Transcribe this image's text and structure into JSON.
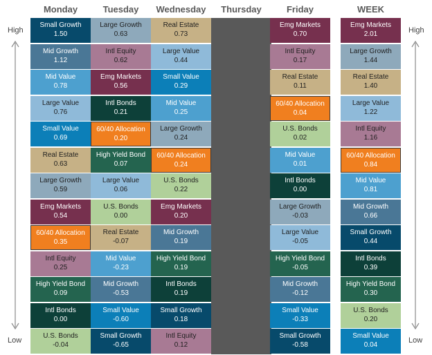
{
  "colors": {
    "Small Growth": "#074a6b",
    "Large Growth": "#8ea9bb",
    "Emg Markets": "#76304e",
    "Intl Equity": "#a87a94",
    "Real Estate": "#c6b186",
    "Mid Growth": "#4a7796",
    "Large Value": "#8fbad9",
    "60/40 Allocation": "#f07f1f",
    "Mid Value": "#4da0cf",
    "Small Value": "#0c7fb8",
    "Intl Bonds": "#0d4039",
    "High Yield Bond": "#24644f",
    "U.S. Bonds": "#b0d09a",
    "thursday": "#595959"
  },
  "labels": {
    "high": "High",
    "low": "Low"
  },
  "chart_data": {
    "type": "table",
    "columns": [
      {
        "day": "Monday",
        "cells": [
          {
            "name": "Small Growth",
            "value": "1.50"
          },
          {
            "name": "Mid Growth",
            "value": "1.12"
          },
          {
            "name": "Mid Value",
            "value": "0.78"
          },
          {
            "name": "Large Value",
            "value": "0.76"
          },
          {
            "name": "Small Value",
            "value": "0.69"
          },
          {
            "name": "Real Estate",
            "value": "0.63"
          },
          {
            "name": "Large Growth",
            "value": "0.59"
          },
          {
            "name": "Emg Markets",
            "value": "0.54"
          },
          {
            "name": "60/40 Allocation",
            "value": "0.35"
          },
          {
            "name": "Intl Equity",
            "value": "0.25"
          },
          {
            "name": "High Yield Bond",
            "value": "0.09"
          },
          {
            "name": "Intl Bonds",
            "value": "0.00"
          },
          {
            "name": "U.S. Bonds",
            "value": "-0.04"
          }
        ]
      },
      {
        "day": "Tuesday",
        "cells": [
          {
            "name": "Large Growth",
            "value": "0.63"
          },
          {
            "name": "Intl Equity",
            "value": "0.62"
          },
          {
            "name": "Emg Markets",
            "value": "0.56"
          },
          {
            "name": "Intl Bonds",
            "value": "0.21"
          },
          {
            "name": "60/40 Allocation",
            "value": "0.20"
          },
          {
            "name": "High Yield Bond",
            "value": "0.07"
          },
          {
            "name": "Large Value",
            "value": "0.06"
          },
          {
            "name": "U.S. Bonds",
            "value": "0.00"
          },
          {
            "name": "Real Estate",
            "value": "-0.07"
          },
          {
            "name": "Mid Value",
            "value": "-0.23"
          },
          {
            "name": "Mid Growth",
            "value": "-0.53"
          },
          {
            "name": "Small Value",
            "value": "-0.60"
          },
          {
            "name": "Small Growth",
            "value": "-0.65"
          }
        ]
      },
      {
        "day": "Wednesday",
        "cells": [
          {
            "name": "Real Estate",
            "value": "0.73"
          },
          {
            "name": "Large Value",
            "value": "0.44"
          },
          {
            "name": "Small Value",
            "value": "0.29"
          },
          {
            "name": "Mid Value",
            "value": "0.25"
          },
          {
            "name": "Large Growth",
            "value": "0.24"
          },
          {
            "name": "60/40 Allocation",
            "value": "0.24"
          },
          {
            "name": "U.S. Bonds",
            "value": "0.22"
          },
          {
            "name": "Emg Markets",
            "value": "0.20"
          },
          {
            "name": "Mid Growth",
            "value": "0.19"
          },
          {
            "name": "High Yield Bond",
            "value": "0.19"
          },
          {
            "name": "Intl Bonds",
            "value": "0.19"
          },
          {
            "name": "Small Growth",
            "value": "0.18"
          },
          {
            "name": "Intl Equity",
            "value": "0.12"
          }
        ]
      },
      {
        "day": "Thursday",
        "cells": []
      },
      {
        "day": "Friday",
        "cells": [
          {
            "name": "Emg Markets",
            "value": "0.70"
          },
          {
            "name": "Intl Equity",
            "value": "0.17"
          },
          {
            "name": "Real Estate",
            "value": "0.11"
          },
          {
            "name": "60/40 Allocation",
            "value": "0.04"
          },
          {
            "name": "U.S. Bonds",
            "value": "0.02"
          },
          {
            "name": "Mid Value",
            "value": "0.01"
          },
          {
            "name": "Intl Bonds",
            "value": "0.00"
          },
          {
            "name": "Large Growth",
            "value": "-0.03"
          },
          {
            "name": "Large Value",
            "value": "-0.05"
          },
          {
            "name": "High Yield Bond",
            "value": "-0.05"
          },
          {
            "name": "Mid Growth",
            "value": "-0.12"
          },
          {
            "name": "Small Value",
            "value": "-0.33"
          },
          {
            "name": "Small Growth",
            "value": "-0.58"
          }
        ]
      },
      {
        "day": "WEEK",
        "cells": [
          {
            "name": "Emg Markets",
            "value": "2.01"
          },
          {
            "name": "Large Growth",
            "value": "1.44"
          },
          {
            "name": "Real Estate",
            "value": "1.40"
          },
          {
            "name": "Large Value",
            "value": "1.22"
          },
          {
            "name": "Intl Equity",
            "value": "1.16"
          },
          {
            "name": "60/40 Allocation",
            "value": "0.84"
          },
          {
            "name": "Mid Value",
            "value": "0.81"
          },
          {
            "name": "Mid Growth",
            "value": "0.66"
          },
          {
            "name": "Small Growth",
            "value": "0.44"
          },
          {
            "name": "Intl Bonds",
            "value": "0.39"
          },
          {
            "name": "High Yield Bond",
            "value": "0.30"
          },
          {
            "name": "U.S. Bonds",
            "value": "0.20"
          },
          {
            "name": "Small Value",
            "value": "0.04"
          }
        ]
      }
    ]
  }
}
